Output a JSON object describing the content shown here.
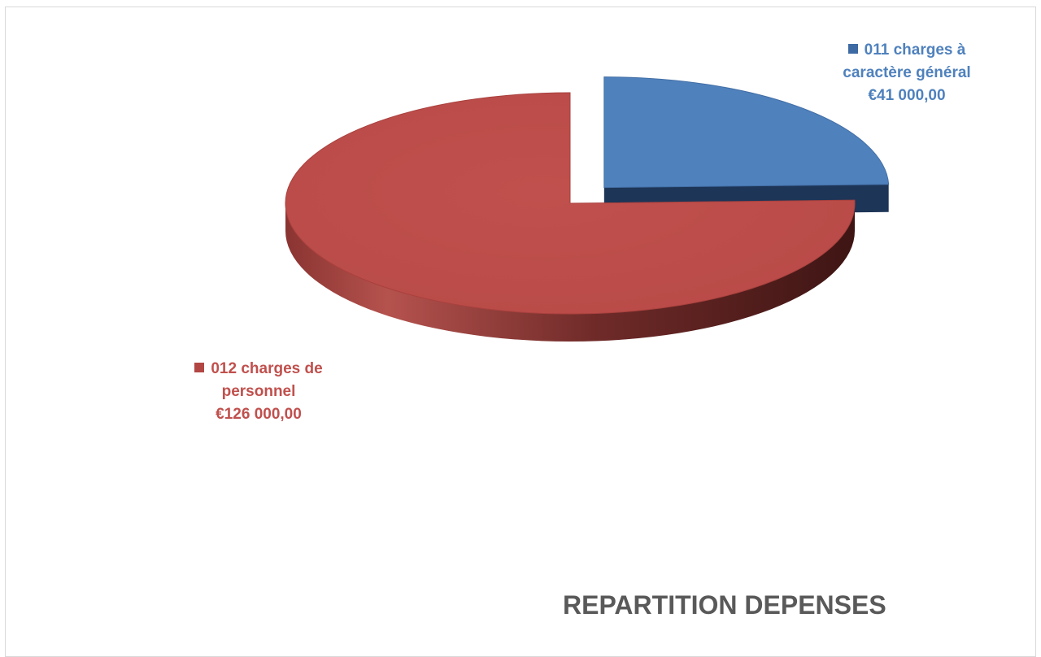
{
  "chart_data": {
    "type": "pie",
    "title": "REPARTITION DEPENSES",
    "series": [
      {
        "name": "011 charges à caractère général",
        "label_lines": [
          "011 charges à",
          "caractère général"
        ],
        "value": 41000,
        "value_label": "€41 000,00",
        "color": "#4f81bd",
        "exploded": true
      },
      {
        "name": "012 charges de personnel",
        "label_lines": [
          "012 charges de",
          "personnel"
        ],
        "value": 126000,
        "value_label": "€126 000,00",
        "color": "#c0504d",
        "exploded": false
      }
    ],
    "style": "3d-pie",
    "legend": "data-labels"
  }
}
